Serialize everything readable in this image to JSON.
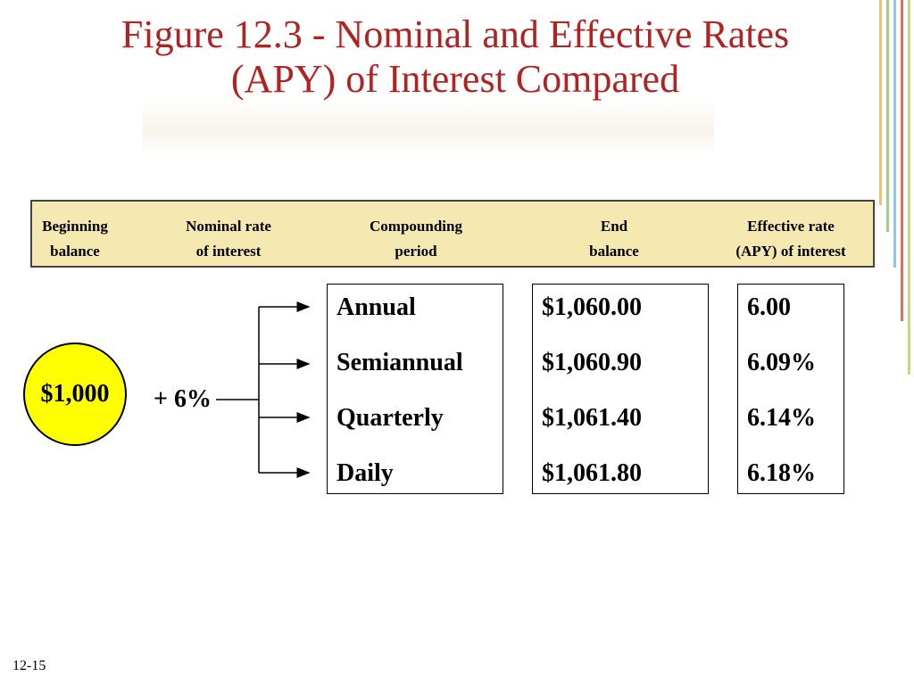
{
  "slide": {
    "title_line1": "Figure 12.3 - Nominal and Effective Rates",
    "title_line2": "(APY) of Interest Compared",
    "slide_number": "12-15"
  },
  "header": {
    "beginning_balance": [
      "Beginning",
      "balance"
    ],
    "nominal_rate": [
      "Nominal rate",
      "of interest"
    ],
    "compounding_period": [
      "Compounding",
      "period"
    ],
    "end_balance": [
      "End",
      "balance"
    ],
    "effective_rate": [
      "Effective rate",
      "(APY) of interest"
    ]
  },
  "diagram": {
    "beginning_balance": "$1,000",
    "nominal_rate": "+ 6%",
    "compounding_periods": [
      "Annual",
      "Semiannual",
      "Quarterly",
      "Daily"
    ],
    "end_balances": [
      "$1,060.00",
      "$1,060.90",
      "$1,061.40",
      "$1,061.80"
    ],
    "effective_rates": [
      "6.00",
      "6.09%",
      "6.14%",
      "6.18%"
    ]
  },
  "colors": {
    "title": "#b22222",
    "header_fill": "#f5e8b0",
    "circle_fill": "#ffff00",
    "stripes": [
      "#f4c06a",
      "#9fcf8a",
      "#8ec6e8",
      "#e86a5a",
      "#c8d87a"
    ]
  }
}
